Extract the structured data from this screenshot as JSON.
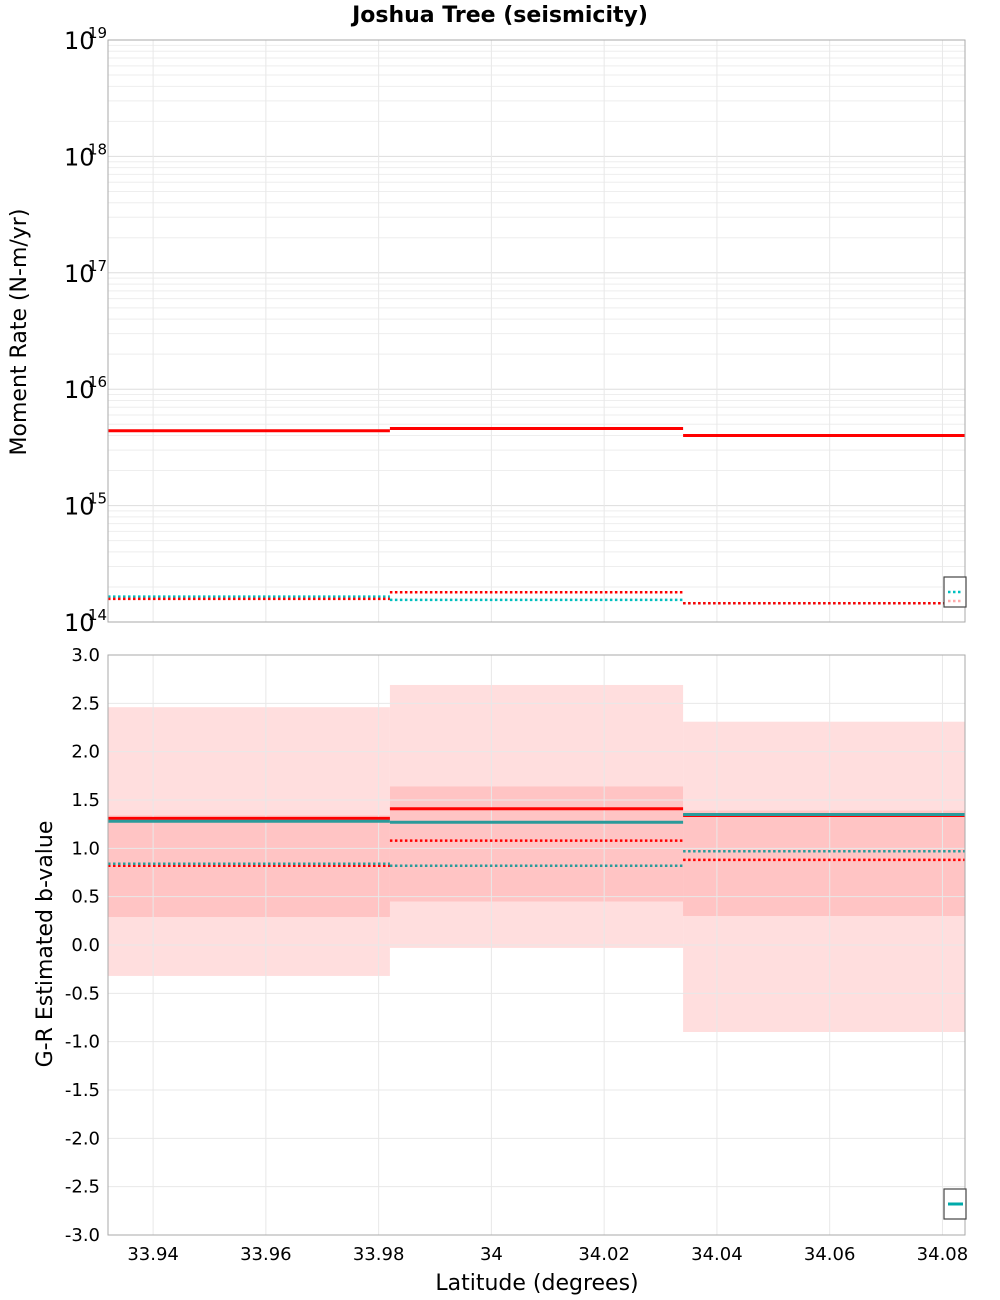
{
  "chart_data": {
    "title": "Joshua Tree (seismicity)",
    "xlabel": "Latitude (degrees)",
    "xlim": [
      33.932,
      34.084
    ],
    "xticks": [
      33.94,
      33.96,
      33.98,
      34.0,
      34.02,
      34.04,
      34.06,
      34.08
    ],
    "xtick_labels": [
      "33.94",
      "33.96",
      "33.98",
      "34",
      "34.02",
      "34.04",
      "34.06",
      "34.08"
    ],
    "bins": [
      33.932,
      33.982,
      34.034,
      34.084
    ],
    "grid": true,
    "panels": [
      {
        "type": "line",
        "ylabel": "Moment Rate (N-m/yr)",
        "yscale": "log",
        "ylim": [
          100000000000000.0,
          1e+19
        ],
        "ytick_exponents": [
          "14",
          "15",
          "16",
          "17",
          "18",
          "19"
        ],
        "ytick_base": "10",
        "series": [
          {
            "style": "solid",
            "color": "#ff0000",
            "values": [
              4400000000000000.0,
              4600000000000000.0,
              4000000000000000.0
            ]
          },
          {
            "style": "dotted",
            "color": "#00bfbf",
            "values": [
              165000000000000.0,
              155000000000000.0,
              145000000000000.0
            ]
          },
          {
            "style": "dotted",
            "color": "#ff0000",
            "values": [
              158000000000000.0,
              180000000000000.0,
              145000000000000.0
            ]
          }
        ],
        "legend": "bottom-right"
      },
      {
        "type": "line",
        "ylabel": "G-R Estimated b-value",
        "yscale": "linear",
        "ylim": [
          -3.0,
          3.0
        ],
        "yticks": [
          "-3.0",
          "-2.5",
          "-2.0",
          "-1.5",
          "-1.0",
          "-0.5",
          "0.0",
          "0.5",
          "1.0",
          "1.5",
          "2.0",
          "2.5",
          "3.0"
        ],
        "bands": [
          {
            "color": "#ffdede",
            "lower": [
              -0.32,
              -0.03,
              -0.9
            ],
            "upper": [
              2.46,
              2.69,
              2.31
            ]
          },
          {
            "color": "#ffc4c4",
            "lower": [
              0.29,
              0.45,
              0.3
            ],
            "upper": [
              1.34,
              1.64,
              1.39
            ]
          }
        ],
        "series": [
          {
            "style": "solid",
            "color": "#ff0000",
            "values": [
              1.31,
              1.41,
              1.34
            ]
          },
          {
            "style": "solid",
            "color": "#2a9a9a",
            "values": [
              1.28,
              1.27,
              1.35
            ]
          },
          {
            "style": "dotted",
            "color": "#ff0000",
            "values": [
              0.82,
              1.08,
              0.88
            ]
          },
          {
            "style": "dotted",
            "color": "#2a9a9a",
            "values": [
              0.84,
              0.82,
              0.97
            ]
          }
        ],
        "legend": "bottom-right"
      }
    ]
  }
}
